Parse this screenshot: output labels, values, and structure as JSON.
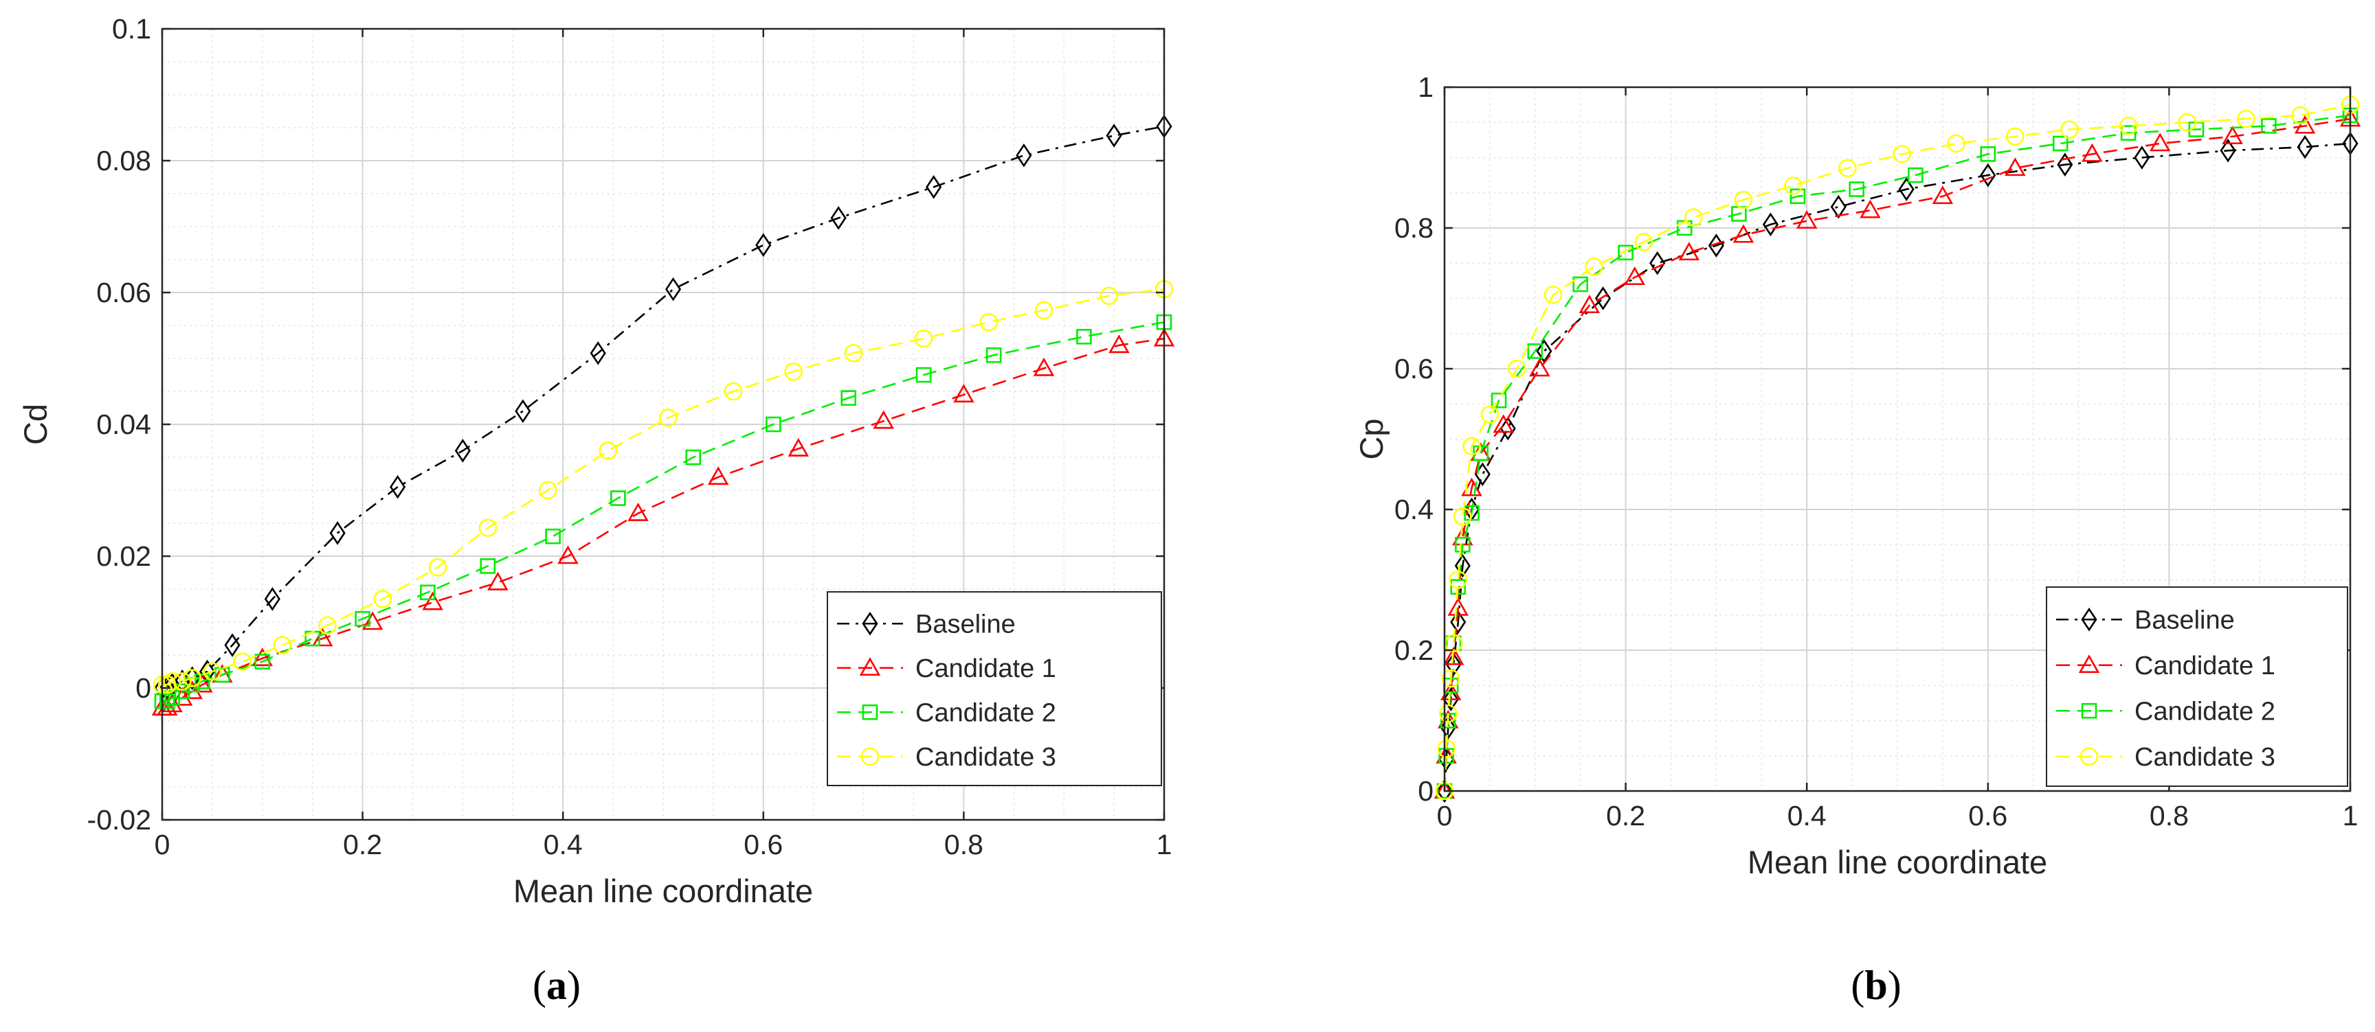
{
  "colors": {
    "baseline": "#000000",
    "candidate1": "#ff0000",
    "candidate2": "#00ee00",
    "candidate3": "#ffff00",
    "axis": "#262626",
    "grid_major": "#d4d4d4",
    "grid_minor": "#e6e6e6",
    "background": "#ffffff"
  },
  "legend_labels": [
    "Baseline",
    "Candidate 1",
    "Candidate 2",
    "Candidate 3"
  ],
  "chart_data": [
    {
      "type": "line",
      "panel_label_open": "(",
      "panel_label_letter": "a",
      "panel_label_close": ")",
      "title": "",
      "xlabel": "Mean line coordinate",
      "ylabel": "Cd",
      "xlim": [
        0,
        1
      ],
      "ylim": [
        -0.02,
        0.1
      ],
      "xticks": [
        0,
        0.2,
        0.4,
        0.6,
        0.8,
        1
      ],
      "xtick_labels": [
        "0",
        "0.2",
        "0.4",
        "0.6",
        "0.8",
        "1"
      ],
      "yticks": [
        -0.02,
        0,
        0.02,
        0.04,
        0.06,
        0.08,
        0.1
      ],
      "ytick_labels": [
        "-0.02",
        "0",
        "0.02",
        "0.04",
        "0.06",
        "0.08",
        "0.1"
      ],
      "grid": true,
      "minor_grid": true,
      "legend_position": "bottom-right",
      "series": [
        {
          "name": "Baseline",
          "marker": "diamond",
          "dash": "dashdot",
          "color_key": "baseline",
          "x": [
            0,
            0.005,
            0.01,
            0.02,
            0.03,
            0.045,
            0.07,
            0.11,
            0.175,
            0.235,
            0.3,
            0.36,
            0.435,
            0.51,
            0.6,
            0.675,
            0.77,
            0.86,
            0.95,
            1.0
          ],
          "y": [
            0.0,
            0.0,
            0.0005,
            0.001,
            0.0015,
            0.0025,
            0.0065,
            0.0135,
            0.0235,
            0.0305,
            0.036,
            0.042,
            0.0508,
            0.0605,
            0.0672,
            0.0713,
            0.076,
            0.0808,
            0.0838,
            0.0852
          ]
        },
        {
          "name": "Candidate 1",
          "marker": "triangle",
          "dash": "dashed",
          "color_key": "candidate1",
          "x": [
            0,
            0.005,
            0.01,
            0.02,
            0.03,
            0.04,
            0.06,
            0.1,
            0.16,
            0.21,
            0.27,
            0.335,
            0.405,
            0.475,
            0.555,
            0.635,
            0.72,
            0.8,
            0.88,
            0.955,
            1.0
          ],
          "y": [
            -0.003,
            -0.003,
            -0.0025,
            -0.0015,
            -0.0005,
            0.0005,
            0.002,
            0.0045,
            0.0075,
            0.01,
            0.013,
            0.016,
            0.02,
            0.0265,
            0.032,
            0.0363,
            0.0405,
            0.0445,
            0.0485,
            0.052,
            0.053
          ]
        },
        {
          "name": "Candidate 2",
          "marker": "square",
          "dash": "dashed",
          "color_key": "candidate2",
          "x": [
            0,
            0.005,
            0.01,
            0.02,
            0.03,
            0.04,
            0.06,
            0.1,
            0.15,
            0.2,
            0.265,
            0.325,
            0.39,
            0.455,
            0.53,
            0.61,
            0.685,
            0.76,
            0.83,
            0.92,
            1.0
          ],
          "y": [
            -0.002,
            -0.002,
            -0.0015,
            -0.0005,
            0.0005,
            0.001,
            0.002,
            0.004,
            0.0075,
            0.0105,
            0.0145,
            0.0185,
            0.023,
            0.0288,
            0.035,
            0.04,
            0.044,
            0.0475,
            0.0505,
            0.0533,
            0.0555
          ]
        },
        {
          "name": "Candidate 3",
          "marker": "circle",
          "dash": "dashed",
          "color_key": "candidate3",
          "x": [
            0,
            0.005,
            0.01,
            0.02,
            0.03,
            0.05,
            0.08,
            0.12,
            0.165,
            0.22,
            0.275,
            0.325,
            0.385,
            0.445,
            0.505,
            0.57,
            0.63,
            0.69,
            0.76,
            0.825,
            0.88,
            0.945,
            1.0
          ],
          "y": [
            0.0005,
            0.0005,
            0.001,
            0.001,
            0.0015,
            0.0025,
            0.004,
            0.0065,
            0.0095,
            0.0135,
            0.0183,
            0.0243,
            0.03,
            0.036,
            0.041,
            0.045,
            0.048,
            0.0508,
            0.053,
            0.0555,
            0.0573,
            0.0595,
            0.0605
          ]
        }
      ]
    },
    {
      "type": "line",
      "panel_label_open": "(",
      "panel_label_letter": "b",
      "panel_label_close": ")",
      "title": "",
      "xlabel": "Mean line coordinate",
      "ylabel": "Cp",
      "xlim": [
        0,
        1
      ],
      "ylim": [
        0,
        1
      ],
      "xticks": [
        0,
        0.2,
        0.4,
        0.6,
        0.8,
        1
      ],
      "xtick_labels": [
        "0",
        "0.2",
        "0.4",
        "0.6",
        "0.8",
        "1"
      ],
      "yticks": [
        0,
        0.2,
        0.4,
        0.6,
        0.8,
        1
      ],
      "ytick_labels": [
        "0",
        "0.2",
        "0.4",
        "0.6",
        "0.8",
        "1"
      ],
      "grid": true,
      "minor_grid": true,
      "legend_position": "bottom-right",
      "series": [
        {
          "name": "Baseline",
          "marker": "diamond",
          "dash": "dashdot",
          "color_key": "baseline",
          "x": [
            0,
            0.002,
            0.004,
            0.007,
            0.01,
            0.015,
            0.02,
            0.03,
            0.042,
            0.07,
            0.11,
            0.175,
            0.235,
            0.3,
            0.36,
            0.435,
            0.51,
            0.6,
            0.685,
            0.77,
            0.865,
            0.95,
            1.0
          ],
          "y": [
            0,
            0.045,
            0.09,
            0.13,
            0.18,
            0.24,
            0.32,
            0.4,
            0.45,
            0.515,
            0.625,
            0.7,
            0.75,
            0.775,
            0.805,
            0.83,
            0.855,
            0.875,
            0.89,
            0.9,
            0.91,
            0.915,
            0.92
          ]
        },
        {
          "name": "Candidate 1",
          "marker": "triangle",
          "dash": "dashed",
          "color_key": "candidate1",
          "x": [
            0,
            0.002,
            0.004,
            0.007,
            0.01,
            0.015,
            0.02,
            0.03,
            0.04,
            0.065,
            0.105,
            0.16,
            0.21,
            0.27,
            0.33,
            0.4,
            0.47,
            0.55,
            0.63,
            0.715,
            0.79,
            0.87,
            0.95,
            1.0
          ],
          "y": [
            0,
            0.05,
            0.1,
            0.14,
            0.19,
            0.26,
            0.36,
            0.43,
            0.48,
            0.52,
            0.6,
            0.69,
            0.73,
            0.765,
            0.79,
            0.81,
            0.825,
            0.845,
            0.885,
            0.905,
            0.92,
            0.93,
            0.945,
            0.955
          ]
        },
        {
          "name": "Candidate 2",
          "marker": "square",
          "dash": "dashed",
          "color_key": "candidate2",
          "x": [
            0,
            0.002,
            0.004,
            0.007,
            0.01,
            0.015,
            0.02,
            0.03,
            0.04,
            0.06,
            0.1,
            0.15,
            0.2,
            0.265,
            0.325,
            0.39,
            0.455,
            0.52,
            0.6,
            0.68,
            0.755,
            0.83,
            0.91,
            1.0
          ],
          "y": [
            0,
            0.05,
            0.1,
            0.15,
            0.21,
            0.29,
            0.35,
            0.395,
            0.48,
            0.555,
            0.625,
            0.72,
            0.765,
            0.8,
            0.82,
            0.845,
            0.855,
            0.875,
            0.905,
            0.92,
            0.935,
            0.94,
            0.945,
            0.96
          ]
        },
        {
          "name": "Candidate 3",
          "marker": "circle",
          "dash": "dashed",
          "color_key": "candidate3",
          "x": [
            0,
            0.002,
            0.004,
            0.007,
            0.01,
            0.015,
            0.02,
            0.03,
            0.05,
            0.08,
            0.12,
            0.165,
            0.22,
            0.275,
            0.33,
            0.385,
            0.445,
            0.505,
            0.565,
            0.63,
            0.69,
            0.755,
            0.82,
            0.885,
            0.945,
            1.0
          ],
          "y": [
            0,
            0.06,
            0.11,
            0.16,
            0.21,
            0.3,
            0.39,
            0.49,
            0.535,
            0.6,
            0.705,
            0.745,
            0.78,
            0.815,
            0.84,
            0.86,
            0.885,
            0.905,
            0.92,
            0.93,
            0.94,
            0.945,
            0.95,
            0.955,
            0.96,
            0.975
          ]
        }
      ]
    }
  ]
}
